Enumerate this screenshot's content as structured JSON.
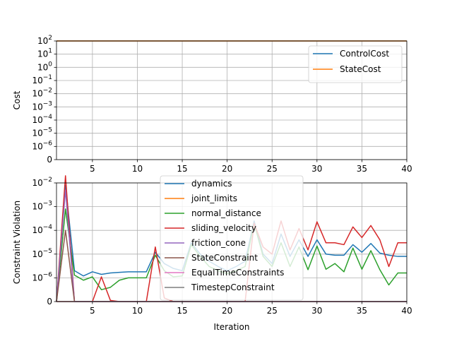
{
  "chart_data": [
    {
      "type": "line",
      "ylabel": "Cost",
      "xlim": [
        1,
        40
      ],
      "ylim_labels": [
        "0",
        "10^-6",
        "10^-5",
        "10^-4",
        "10^-3",
        "10^-2",
        "10^-1",
        "10^0",
        "10^1",
        "10^2"
      ],
      "ytick_labels": [
        {
          "base": "0",
          "exp": ""
        },
        {
          "base": "10",
          "exp": "−6"
        },
        {
          "base": "10",
          "exp": "−5"
        },
        {
          "base": "10",
          "exp": "−4"
        },
        {
          "base": "10",
          "exp": "−3"
        },
        {
          "base": "10",
          "exp": "−2"
        },
        {
          "base": "10",
          "exp": "−1"
        },
        {
          "base": "10",
          "exp": "0"
        },
        {
          "base": "10",
          "exp": "1"
        },
        {
          "base": "10",
          "exp": "2"
        }
      ],
      "xticks": [
        "5",
        "10",
        "15",
        "20",
        "25",
        "30",
        "35",
        "40"
      ],
      "grid": true,
      "legend_position": "top-right",
      "series": [
        {
          "name": "ControlCost",
          "color": "#1f77b4",
          "x": [
            1,
            2,
            3,
            4,
            5,
            6,
            7,
            8,
            9,
            10,
            11,
            12,
            13,
            14,
            15,
            16,
            17,
            18,
            19,
            20,
            21,
            22,
            23,
            24,
            25,
            26,
            27,
            28,
            29,
            30,
            31,
            32,
            33,
            34,
            35,
            36,
            37,
            38,
            39,
            40
          ],
          "y_level": 100
        },
        {
          "name": "StateCost",
          "color": "#ff7f0e",
          "x": [
            1,
            40
          ],
          "y_level": 100
        }
      ]
    },
    {
      "type": "line",
      "xlabel": "Iteration",
      "ylabel": "Constraint Violation",
      "xlim": [
        1,
        40
      ],
      "ytick_labels": [
        {
          "base": "0",
          "exp": ""
        },
        {
          "base": "10",
          "exp": "−6"
        },
        {
          "base": "10",
          "exp": "−5"
        },
        {
          "base": "10",
          "exp": "−4"
        },
        {
          "base": "10",
          "exp": "−3"
        },
        {
          "base": "10",
          "exp": "−2"
        }
      ],
      "xticks": [
        "5",
        "10",
        "15",
        "20",
        "25",
        "30",
        "35",
        "40"
      ],
      "grid": true,
      "legend_position": "upper-center",
      "series": [
        {
          "name": "dynamics",
          "color": "#1f77b4",
          "x": [
            1,
            2,
            3,
            4,
            5,
            6,
            7,
            8,
            9,
            10,
            11,
            12,
            13,
            14,
            15,
            16,
            17,
            18,
            19,
            20,
            21,
            22,
            23,
            24,
            25,
            26,
            27,
            28,
            29,
            30,
            31,
            32,
            33,
            34,
            35,
            36,
            37,
            38,
            39,
            40
          ],
          "y": [
            0,
            0.008,
            2e-06,
            1.2e-06,
            1.8e-06,
            1.4e-06,
            1.6e-06,
            1.7e-06,
            1.8e-06,
            1.8e-06,
            1.8e-06,
            1.2e-05,
            4e-06,
            2.5e-06,
            2e-06,
            3e-05,
            1e-05,
            5e-06,
            3e-06,
            2e-06,
            3e-06,
            5e-06,
            0.00025,
            1e-05,
            4e-06,
            7e-05,
            8e-06,
            4e-05,
            8e-06,
            4e-05,
            1e-05,
            9e-06,
            9e-06,
            2.5e-05,
            1.2e-05,
            2.8e-05,
            1.1e-05,
            9e-06,
            8e-06,
            8e-06
          ]
        },
        {
          "name": "joint_limits",
          "color": "#ff7f0e",
          "x": [
            1,
            40
          ],
          "y": [
            0,
            0
          ]
        },
        {
          "name": "normal_distance",
          "color": "#2ca02c",
          "x": [
            1,
            2,
            3,
            4,
            5,
            6,
            7,
            8,
            9,
            10,
            11,
            12,
            13,
            14,
            15,
            16,
            17,
            18,
            19,
            20,
            21,
            22,
            23,
            24,
            25,
            26,
            27,
            28,
            29,
            30,
            31,
            32,
            33,
            34,
            35,
            36,
            37,
            38,
            39,
            40
          ],
          "y": [
            0,
            0.0008,
            1.3e-06,
            9e-07,
            1.1e-06,
            5e-07,
            6e-07,
            9e-07,
            1e-06,
            1e-06,
            1e-06,
            9e-06,
            2e-06,
            1.1e-06,
            1.2e-06,
            2.5e-05,
            8e-06,
            3e-06,
            2e-06,
            1.5e-06,
            2e-06,
            3e-06,
            0.0002,
            8e-06,
            3e-06,
            3e-05,
            3e-06,
            2e-05,
            2.2e-06,
            2.2e-05,
            2.3e-06,
            4e-06,
            1.8e-06,
            1.8e-05,
            2.3e-06,
            1.4e-05,
            2.2e-06,
            7e-07,
            1.6e-06,
            1.6e-06
          ]
        },
        {
          "name": "sliding_velocity",
          "color": "#d62728",
          "x": [
            1,
            2,
            3,
            4,
            5,
            6,
            7,
            8,
            9,
            10,
            11,
            12,
            13,
            14,
            15,
            16,
            17,
            18,
            19,
            20,
            21,
            22,
            23,
            24,
            25,
            26,
            27,
            28,
            29,
            30,
            31,
            32,
            33,
            34,
            35,
            36,
            37,
            38,
            39,
            40
          ],
          "y": [
            0,
            0.02,
            0,
            0,
            0,
            1.1e-06,
            5e-08,
            0,
            0,
            0,
            0,
            2e-05,
            1.5e-07,
            0,
            0,
            0,
            0,
            0,
            0,
            0,
            0,
            0,
            0.0002,
            2e-05,
            1e-05,
            0.00025,
            1.5e-05,
            0.00012,
            1.5e-05,
            0.00023,
            3e-05,
            3e-05,
            2.5e-05,
            0.00014,
            5e-05,
            0.00016,
            4e-05,
            3e-06,
            3e-05,
            3e-05
          ]
        },
        {
          "name": "friction_cone",
          "color": "#9467bd",
          "x": [
            1,
            2,
            3,
            40
          ],
          "y": [
            0,
            0.005,
            0,
            0
          ]
        },
        {
          "name": "StateConstraint",
          "color": "#8c564b",
          "x": [
            1,
            2,
            3,
            40
          ],
          "y": [
            0,
            0.0001,
            0,
            0
          ]
        },
        {
          "name": "EqualTimeConstraints",
          "color": "#e377c2",
          "x": [
            1,
            40
          ],
          "y": [
            0,
            0
          ]
        },
        {
          "name": "TimestepConstraint",
          "color": "#7f7f7f",
          "x": [
            1,
            40
          ],
          "y": [
            0,
            0
          ]
        }
      ]
    }
  ]
}
